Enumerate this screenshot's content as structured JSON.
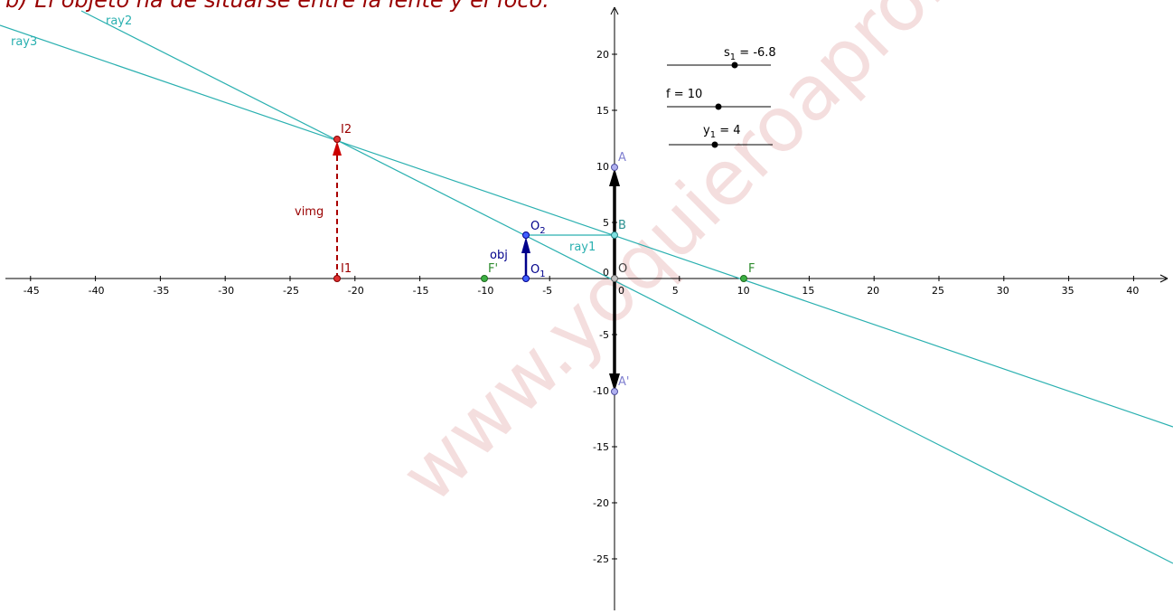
{
  "title": "b) El objeto ha de situarse entre la lente y el foco.",
  "watermark": "www.yoquieroaprobar",
  "axes": {
    "x_ticks": [
      "-45",
      "-40",
      "-35",
      "-30",
      "-25",
      "-20",
      "-15",
      "-10",
      "-5",
      "0",
      "5",
      "10",
      "15",
      "20",
      "25",
      "30",
      "35",
      "40"
    ],
    "y_ticks": [
      "20",
      "15",
      "10",
      "5",
      "-5",
      "-10",
      "-15",
      "-20",
      "-25"
    ],
    "origin_label": "0"
  },
  "sliders": [
    {
      "name": "s",
      "sub": "1",
      "label_tail": " = -6.8",
      "value": -6.8
    },
    {
      "name": "f = 10",
      "sub": "",
      "label_tail": "",
      "value": 10
    },
    {
      "name": "y",
      "sub": "1",
      "label_tail": " = 4",
      "value": 4
    }
  ],
  "labels": {
    "A": "A",
    "A_prime": "A'",
    "B": "B",
    "O": "O",
    "F": "F",
    "F_prime": "F'",
    "O1": "O",
    "O1_sub": "1",
    "O2": "O",
    "O2_sub": "2",
    "I1": "I1",
    "I2": "I2",
    "obj": "obj",
    "vimg": "vimg",
    "ray1": "ray1",
    "ray2": "ray2",
    "ray3": "ray3"
  },
  "colors": {
    "ray": "#2ab0b0",
    "object": "#00008b",
    "image": "#cc0000",
    "focus": "#2e8b2e",
    "lens_point": "#8080d0",
    "title": "#990000"
  },
  "model": {
    "focal_length": 10,
    "object_position": -6.8,
    "object_height": 4,
    "lens_half_height": 10,
    "image_position": -21.25,
    "image_height": 12.5
  }
}
